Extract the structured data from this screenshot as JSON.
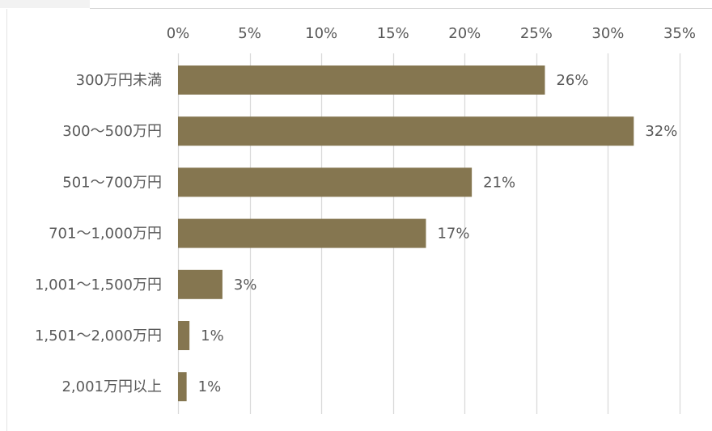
{
  "chart_data": {
    "type": "bar",
    "orientation": "horizontal",
    "categories": [
      "300万円未満",
      "300～500万円",
      "501～700万円",
      "701～1,000万円",
      "1,001～1,500万円",
      "1,501～2,000万円",
      "2,001万円以上"
    ],
    "values": [
      25.6,
      31.8,
      20.5,
      17.3,
      3.1,
      0.8,
      0.6
    ],
    "data_labels": [
      "26%",
      "32%",
      "21%",
      "17%",
      "3%",
      "1%",
      "1%"
    ],
    "x_ticks": [
      0,
      5,
      10,
      15,
      20,
      25,
      30,
      35
    ],
    "x_tick_labels": [
      "0%",
      "5%",
      "10%",
      "15%",
      "20%",
      "25%",
      "30%",
      "35%"
    ],
    "xlim": [
      0,
      35
    ],
    "axis_position": "top",
    "grid": true,
    "legend": "none",
    "colors": {
      "bar": "#857650",
      "grid": "#d9d9d9",
      "text": "#595959"
    }
  }
}
